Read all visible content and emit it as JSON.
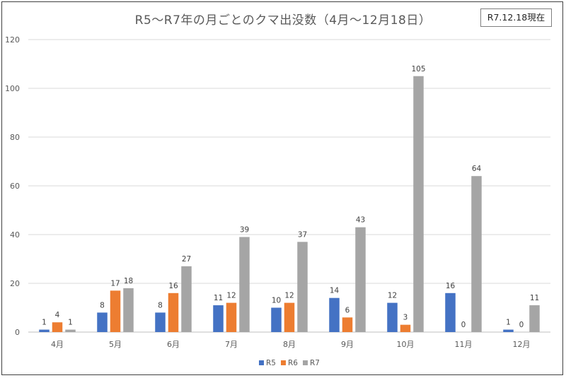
{
  "badge": "R7.12.18現在",
  "chart_data": {
    "type": "bar",
    "title": "R5～R7年の月ごとのクマ出没数（4月～12月18日）",
    "xlabel": "",
    "ylabel": "",
    "ylim": [
      0,
      120
    ],
    "yticks": [
      0,
      20,
      40,
      60,
      80,
      100,
      120
    ],
    "grid": true,
    "legend_position": "bottom",
    "categories": [
      "4月",
      "5月",
      "6月",
      "7月",
      "8月",
      "9月",
      "10月",
      "11月",
      "12月"
    ],
    "series": [
      {
        "name": "R5",
        "color": "#4472C4",
        "values": [
          1,
          8,
          8,
          11,
          10,
          14,
          12,
          16,
          1
        ]
      },
      {
        "name": "R6",
        "color": "#ED7D31",
        "values": [
          4,
          17,
          16,
          12,
          12,
          6,
          3,
          0,
          0
        ]
      },
      {
        "name": "R7",
        "color": "#A5A5A5",
        "values": [
          1,
          18,
          27,
          39,
          37,
          43,
          105,
          64,
          11
        ]
      }
    ]
  }
}
